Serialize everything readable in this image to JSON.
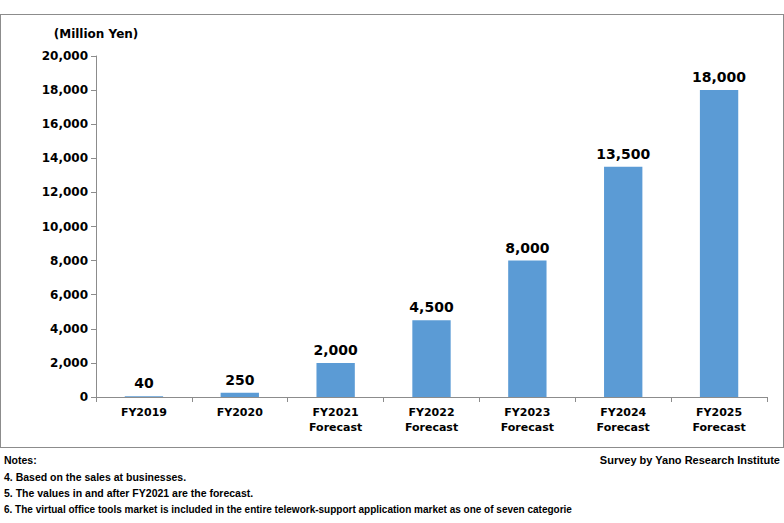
{
  "chart_data": {
    "type": "bar",
    "y_label": "(Million Yen)",
    "categories": [
      "FY2019",
      "FY2020",
      "FY2021\nForecast",
      "FY2022\nForecast",
      "FY2023\nForecast",
      "FY2024\nForecast",
      "FY2025\nForecast"
    ],
    "values": [
      40,
      250,
      2000,
      4500,
      8000,
      13500,
      18000
    ],
    "value_labels": [
      "40",
      "250",
      "2,000",
      "4,500",
      "8,000",
      "13,500",
      "18,000"
    ],
    "color": "#5b9bd5",
    "ylim": [
      0,
      20000
    ],
    "yticks": [
      0,
      {
        "value": 2000,
        "label": "2,000"
      },
      {
        "value": 4000,
        "label": "4,000"
      },
      {
        "value": 6000,
        "label": "6,000"
      },
      {
        "value": 8000,
        "label": "8,000"
      },
      {
        "value": 10000,
        "label": "10,000"
      },
      {
        "value": 12000,
        "label": "12,000"
      },
      {
        "value": 14000,
        "label": "14,000"
      },
      {
        "value": 16000,
        "label": "16,000"
      },
      {
        "value": 18000,
        "label": "18,000"
      },
      {
        "value": 20000,
        "label": "20,000"
      }
    ],
    "grid": false,
    "data_labels": true,
    "annotations": [
      "Notes:",
      "4. Based on the sales at businesses.",
      "5. The values in and after FY2021 are the forecast.",
      "6. The virtual office tools market is included in the entire telework-support application market as one of seven categorie"
    ],
    "source": "Survey by Yano Research Institute"
  }
}
